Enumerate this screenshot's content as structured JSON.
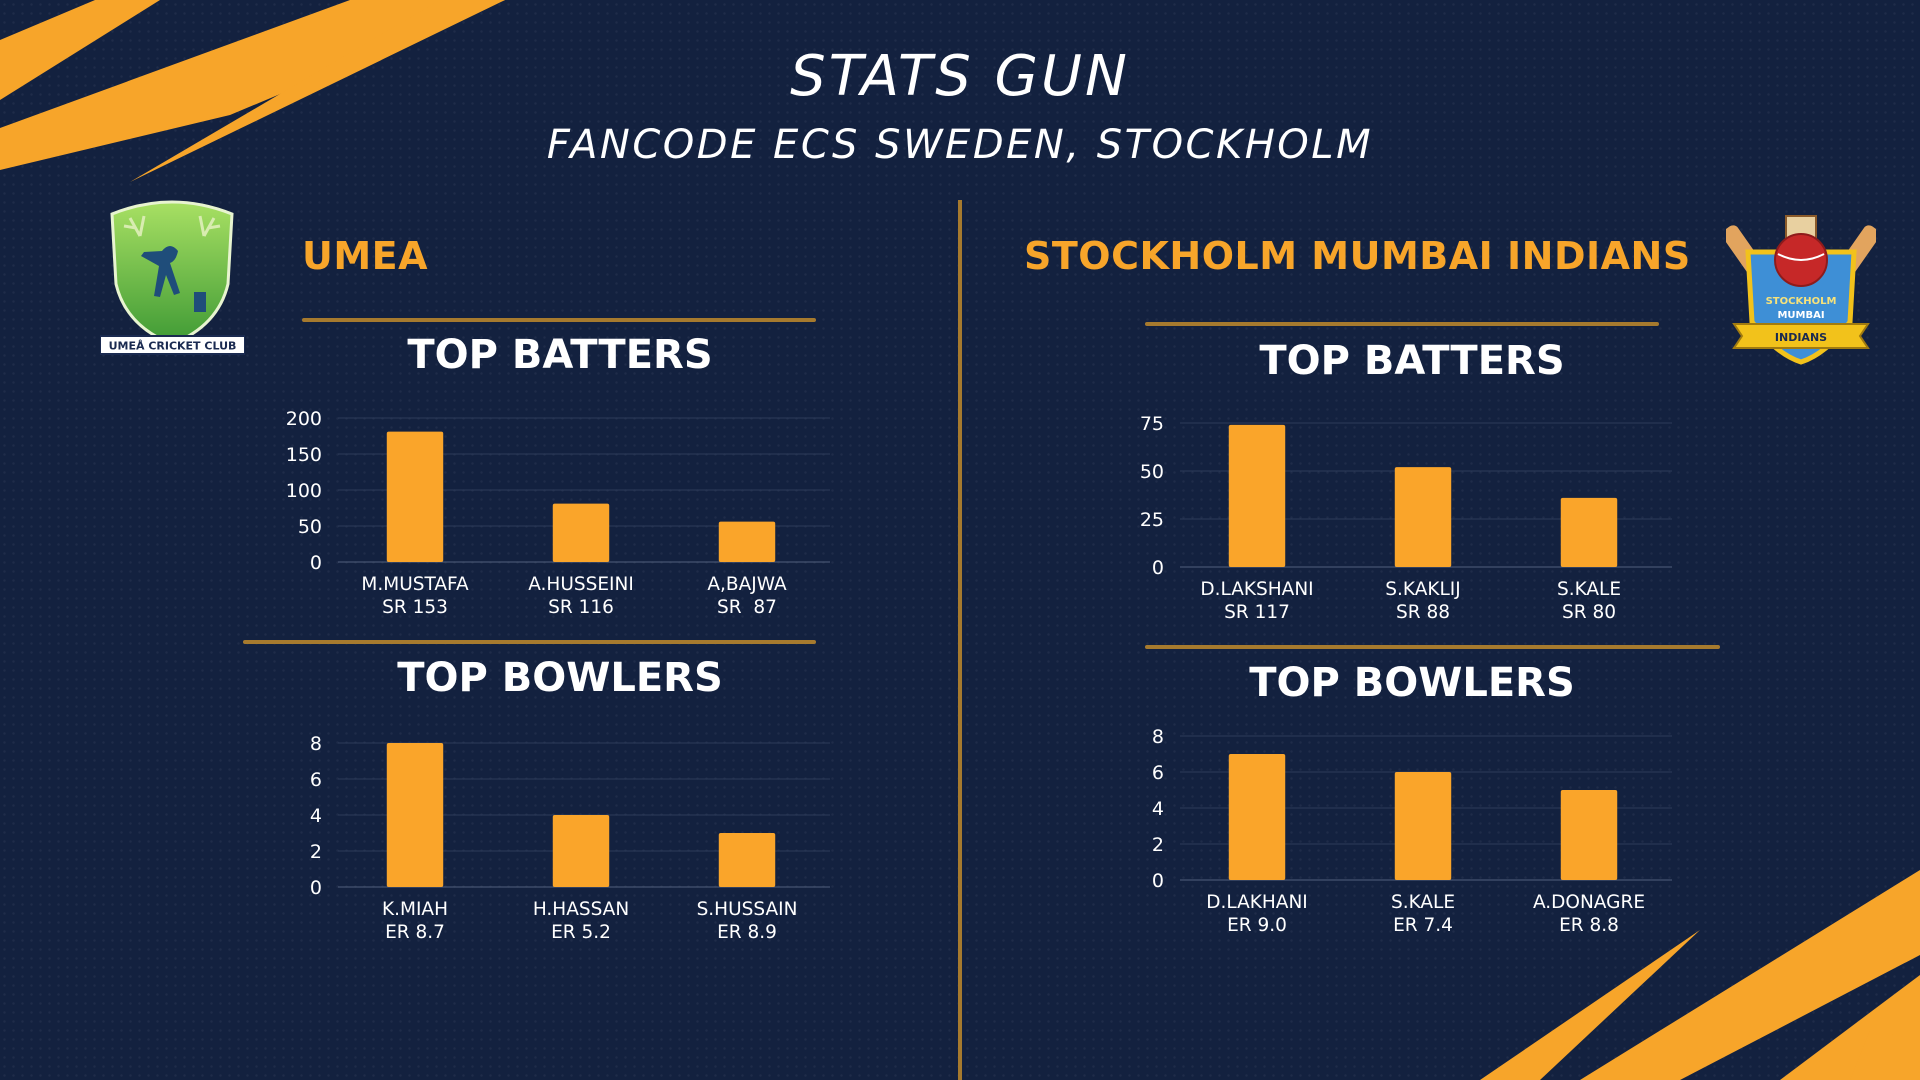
{
  "header": {
    "title": "STATS GUN",
    "subtitle": "FANCODE ECS SWEDEN, STOCKHOLM"
  },
  "colors": {
    "background": "#13213f",
    "accent": "#f7a52a",
    "bar": "#faa52a",
    "divider": "#a67a2e"
  },
  "teams": [
    {
      "name": "UMEA",
      "logo": {
        "icon": "umea-cricket-club-crest-icon",
        "text": "UMEÅ CRICKET CLUB"
      },
      "batters_title": "TOP BATTERS",
      "bowlers_title": "TOP BOWLERS"
    },
    {
      "name": "STOCKHOLM MUMBAI INDIANS",
      "logo": {
        "icon": "stockholm-mumbai-indians-crest-icon",
        "text_lines": [
          "STOCKHOLM",
          "MUMBAI"
        ],
        "ribbon": "INDIANS"
      },
      "batters_title": "TOP BATTERS",
      "bowlers_title": "TOP BOWLERS"
    }
  ],
  "chart_data": [
    {
      "type": "bar",
      "id": "umea-batters",
      "categories": [
        "M.MUSTAFA",
        "A.HUSSEINI",
        "A,BAJWA"
      ],
      "sublabels": [
        "SR 153",
        "SR 116",
        "SR  87"
      ],
      "values": [
        181,
        81,
        56
      ],
      "ylim": [
        0,
        200
      ],
      "yticks": [
        0,
        50,
        100,
        150,
        200
      ],
      "grid": true
    },
    {
      "type": "bar",
      "id": "umea-bowlers",
      "categories": [
        "K.MIAH",
        "H.HASSAN",
        "S.HUSSAIN"
      ],
      "sublabels": [
        "ER 8.7",
        "ER 5.2",
        "ER 8.9"
      ],
      "values": [
        8,
        4,
        3
      ],
      "ylim": [
        0,
        8
      ],
      "yticks": [
        0,
        2,
        4,
        6,
        8
      ],
      "grid": true
    },
    {
      "type": "bar",
      "id": "smi-batters",
      "categories": [
        "D.LAKSHANI",
        "S.KAKLIJ",
        "S.KALE"
      ],
      "sublabels": [
        "SR 117",
        "SR 88",
        "SR 80"
      ],
      "values": [
        74,
        52,
        36
      ],
      "ylim": [
        0,
        75
      ],
      "yticks": [
        0,
        25,
        50,
        75
      ],
      "grid": true
    },
    {
      "type": "bar",
      "id": "smi-bowlers",
      "categories": [
        "D.LAKHANI",
        "S.KALE",
        "A.DONAGRE"
      ],
      "sublabels": [
        "ER 9.0",
        "ER 7.4",
        "ER 8.8"
      ],
      "values": [
        7,
        6,
        5
      ],
      "ylim": [
        0,
        8
      ],
      "yticks": [
        0,
        2,
        4,
        6,
        8
      ],
      "grid": true
    }
  ]
}
